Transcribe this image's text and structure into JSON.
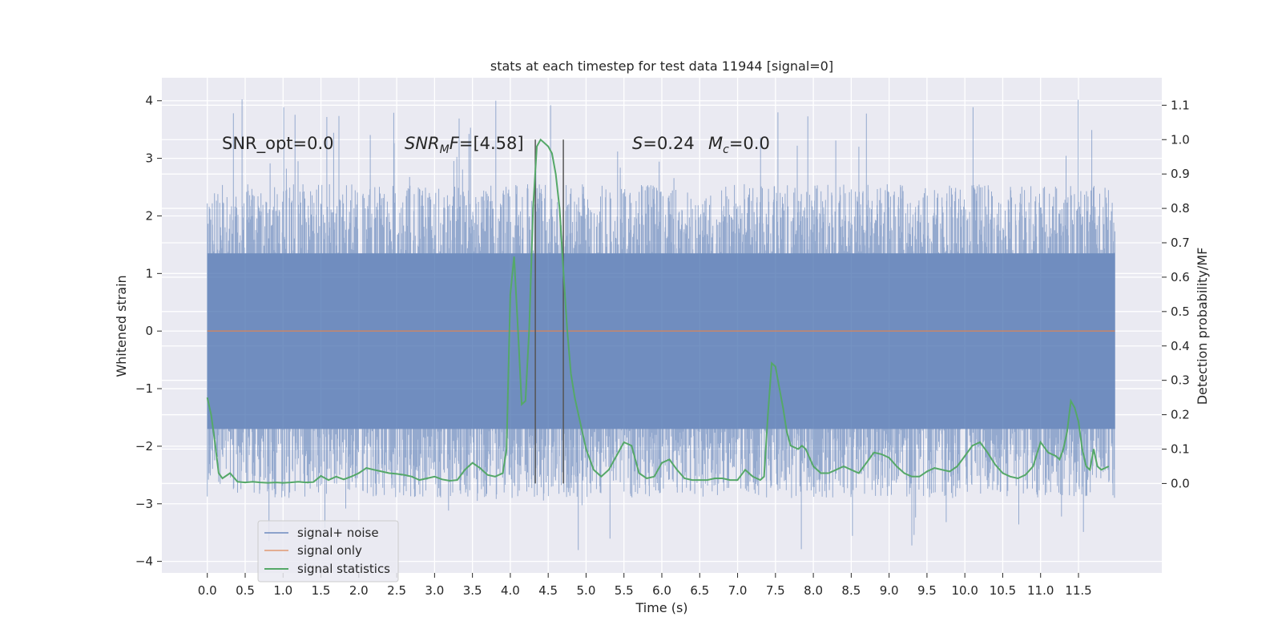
{
  "chart_data": {
    "type": "line",
    "title": "stats at each timestep for test data 11944 [signal=0]",
    "xlabel": "Time (s)",
    "ylabel_left": "Whitened strain",
    "ylabel_right": "Detection probability/MF",
    "xlim": [
      -0.6,
      12.6
    ],
    "ylim_left": [
      -4.2,
      4.4
    ],
    "ylim_right": [
      -0.26,
      1.18
    ],
    "x_ticks": [
      0.0,
      0.5,
      1.0,
      1.5,
      2.0,
      2.5,
      3.0,
      3.5,
      4.0,
      4.5,
      5.0,
      5.5,
      6.0,
      6.5,
      7.0,
      7.5,
      8.0,
      8.5,
      9.0,
      9.5,
      10.0,
      10.5,
      11.0,
      11.5
    ],
    "x_tick_labels": [
      "0.0",
      "0.5",
      "1.0",
      "1.5",
      "2.0",
      "2.5",
      "3.0",
      "3.5",
      "4.0",
      "4.5",
      "5.0",
      "5.5",
      "6.0",
      "6.5",
      "7.0",
      "7.5",
      "8.0",
      "8.5",
      "9.0",
      "9.5",
      "10.0",
      "10.5",
      "11.0",
      "11.5"
    ],
    "y_ticks_left": [
      -4,
      -3,
      -2,
      -1,
      0,
      1,
      2,
      3,
      4
    ],
    "y_tick_labels_left": [
      "−4",
      "−3",
      "−2",
      "−1",
      "0",
      "1",
      "2",
      "3",
      "4"
    ],
    "y_ticks_right": [
      0.0,
      0.1,
      0.2,
      0.3,
      0.4,
      0.5,
      0.6,
      0.7,
      0.8,
      0.9,
      1.0,
      1.1
    ],
    "y_tick_labels_right": [
      "0.0",
      "0.1",
      "0.2",
      "0.3",
      "0.4",
      "0.5",
      "0.6",
      "0.7",
      "0.8",
      "0.9",
      "1.0",
      "1.1"
    ],
    "grid": true,
    "legend_position": "lower-left",
    "annotations": {
      "snr_opt": "SNR_opt=0.0",
      "snr_mf": "[4.58]",
      "s_value": "=0.24",
      "mc_value": "=0.0"
    },
    "vertical_lines_x": [
      4.33,
      4.7
    ],
    "series": [
      {
        "name": "signal+ noise",
        "axis": "left",
        "color": "#4c72b0",
        "description_range": [
          0.0,
          11.98
        ],
        "approx_envelope": {
          "core_low": -1.7,
          "core_high": 1.35,
          "peak_max": 4.08,
          "peak_min": -3.88
        }
      },
      {
        "name": "signal only",
        "axis": "left",
        "color": "#dd8452",
        "x": [
          0.0,
          11.98
        ],
        "y": [
          0.0,
          0.0
        ]
      },
      {
        "name": "signal statistics",
        "axis": "right",
        "color": "#55a868",
        "x": [
          0.0,
          0.05,
          0.1,
          0.15,
          0.2,
          0.3,
          0.4,
          0.5,
          0.6,
          0.7,
          0.8,
          0.9,
          1.0,
          1.1,
          1.2,
          1.3,
          1.4,
          1.5,
          1.6,
          1.7,
          1.8,
          1.9,
          2.0,
          2.1,
          2.2,
          2.3,
          2.4,
          2.5,
          2.6,
          2.7,
          2.8,
          2.9,
          3.0,
          3.1,
          3.2,
          3.3,
          3.4,
          3.5,
          3.6,
          3.7,
          3.8,
          3.9,
          3.95,
          4.0,
          4.05,
          4.1,
          4.15,
          4.2,
          4.25,
          4.3,
          4.35,
          4.4,
          4.45,
          4.5,
          4.55,
          4.6,
          4.65,
          4.7,
          4.75,
          4.8,
          4.85,
          4.9,
          4.95,
          5.0,
          5.05,
          5.1,
          5.2,
          5.3,
          5.4,
          5.5,
          5.6,
          5.7,
          5.8,
          5.9,
          6.0,
          6.1,
          6.2,
          6.3,
          6.4,
          6.5,
          6.6,
          6.7,
          6.8,
          6.9,
          7.0,
          7.1,
          7.2,
          7.3,
          7.35,
          7.4,
          7.45,
          7.5,
          7.55,
          7.6,
          7.65,
          7.7,
          7.8,
          7.85,
          7.9,
          8.0,
          8.1,
          8.2,
          8.3,
          8.4,
          8.5,
          8.6,
          8.7,
          8.8,
          8.9,
          9.0,
          9.1,
          9.2,
          9.3,
          9.4,
          9.5,
          9.6,
          9.7,
          9.8,
          9.9,
          10.0,
          10.1,
          10.2,
          10.3,
          10.4,
          10.5,
          10.6,
          10.7,
          10.8,
          10.9,
          11.0,
          11.1,
          11.2,
          11.25,
          11.3,
          11.35,
          11.4,
          11.45,
          11.5,
          11.55,
          11.6,
          11.65,
          11.7,
          11.75,
          11.8,
          11.9
        ],
        "y": [
          0.25,
          0.2,
          0.12,
          0.03,
          0.015,
          0.03,
          0.005,
          0.003,
          0.005,
          0.003,
          0.002,
          0.003,
          0.002,
          0.003,
          0.005,
          0.003,
          0.004,
          0.022,
          0.01,
          0.02,
          0.012,
          0.02,
          0.03,
          0.045,
          0.04,
          0.035,
          0.03,
          0.028,
          0.025,
          0.02,
          0.01,
          0.015,
          0.02,
          0.012,
          0.008,
          0.01,
          0.04,
          0.06,
          0.045,
          0.025,
          0.02,
          0.03,
          0.1,
          0.55,
          0.66,
          0.45,
          0.23,
          0.24,
          0.45,
          0.8,
          0.98,
          1.0,
          0.99,
          0.98,
          0.96,
          0.9,
          0.8,
          0.62,
          0.45,
          0.32,
          0.25,
          0.2,
          0.15,
          0.1,
          0.07,
          0.04,
          0.02,
          0.04,
          0.08,
          0.12,
          0.11,
          0.03,
          0.015,
          0.02,
          0.06,
          0.07,
          0.04,
          0.015,
          0.01,
          0.01,
          0.01,
          0.015,
          0.015,
          0.01,
          0.01,
          0.04,
          0.02,
          0.01,
          0.02,
          0.2,
          0.35,
          0.34,
          0.28,
          0.22,
          0.15,
          0.11,
          0.1,
          0.11,
          0.1,
          0.05,
          0.03,
          0.03,
          0.04,
          0.05,
          0.04,
          0.03,
          0.06,
          0.09,
          0.085,
          0.075,
          0.05,
          0.03,
          0.02,
          0.02,
          0.035,
          0.045,
          0.04,
          0.035,
          0.05,
          0.08,
          0.11,
          0.12,
          0.09,
          0.055,
          0.03,
          0.02,
          0.015,
          0.025,
          0.05,
          0.12,
          0.09,
          0.08,
          0.07,
          0.1,
          0.15,
          0.24,
          0.22,
          0.18,
          0.1,
          0.05,
          0.04,
          0.1,
          0.05,
          0.04,
          0.05
        ]
      }
    ]
  }
}
